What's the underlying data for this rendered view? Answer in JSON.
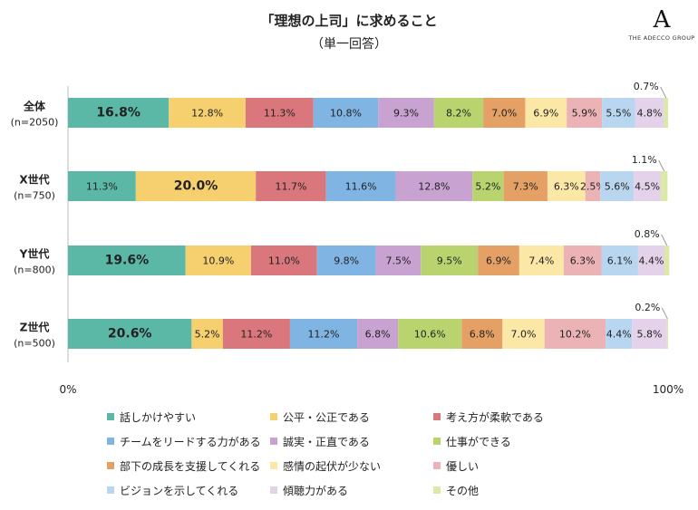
{
  "title": "「理想の上司」に求めること",
  "subtitle": "（単一回答）",
  "logo": {
    "mark": "A",
    "text": "THE ADECCO GROUP"
  },
  "chart_data": {
    "type": "bar",
    "orientation": "horizontal",
    "stacked": "percent",
    "title": "「理想の上司」に求めること",
    "subtitle": "（単一回答）",
    "xlim": [
      0,
      100
    ],
    "x_tick_labels": [
      "0%",
      "100%"
    ],
    "grid": false,
    "legend_position": "bottom",
    "categories": [
      {
        "label": "全体",
        "sublabel": "(n=2050)"
      },
      {
        "label": "X世代",
        "sublabel": "(n=750)"
      },
      {
        "label": "Y世代",
        "sublabel": "(n=800)"
      },
      {
        "label": "Z世代",
        "sublabel": "(n=500)"
      }
    ],
    "series": [
      {
        "name": "話しかけやすい",
        "color": "#5bb8a7",
        "values": [
          16.8,
          11.3,
          19.6,
          20.6
        ]
      },
      {
        "name": "公平・公正である",
        "color": "#f6cf6f",
        "values": [
          12.8,
          20.0,
          10.9,
          5.2
        ]
      },
      {
        "name": "考え方が柔軟である",
        "color": "#d9777c",
        "values": [
          11.3,
          11.7,
          11.0,
          11.2
        ]
      },
      {
        "name": "チームをリードする力がある",
        "color": "#7fb4e3",
        "values": [
          10.8,
          11.6,
          9.8,
          11.2
        ]
      },
      {
        "name": "誠実・正直である",
        "color": "#c8a2d0",
        "values": [
          9.3,
          12.8,
          7.5,
          6.8
        ]
      },
      {
        "name": "仕事ができる",
        "color": "#b9d46f",
        "values": [
          8.2,
          5.2,
          9.5,
          10.6
        ]
      },
      {
        "name": "部下の成長を支援してくれる",
        "color": "#e5a066",
        "values": [
          7.0,
          7.3,
          6.9,
          6.8
        ]
      },
      {
        "name": "感情の起伏が少ない",
        "color": "#fbe7a6",
        "values": [
          6.9,
          6.3,
          7.4,
          7.0
        ]
      },
      {
        "name": "優しい",
        "color": "#ecb3b6",
        "values": [
          5.9,
          2.5,
          6.3,
          10.2
        ]
      },
      {
        "name": "ビジョンを示してくれる",
        "color": "#b8d6f0",
        "values": [
          5.5,
          5.6,
          6.1,
          4.4
        ]
      },
      {
        "name": "傾聴力がある",
        "color": "#e4d1ea",
        "values": [
          4.8,
          4.5,
          4.4,
          5.8
        ]
      },
      {
        "name": "その他",
        "color": "#dbe9a6",
        "values": [
          0.7,
          1.1,
          0.8,
          0.2
        ]
      }
    ],
    "bold_largest_per_row": true
  }
}
